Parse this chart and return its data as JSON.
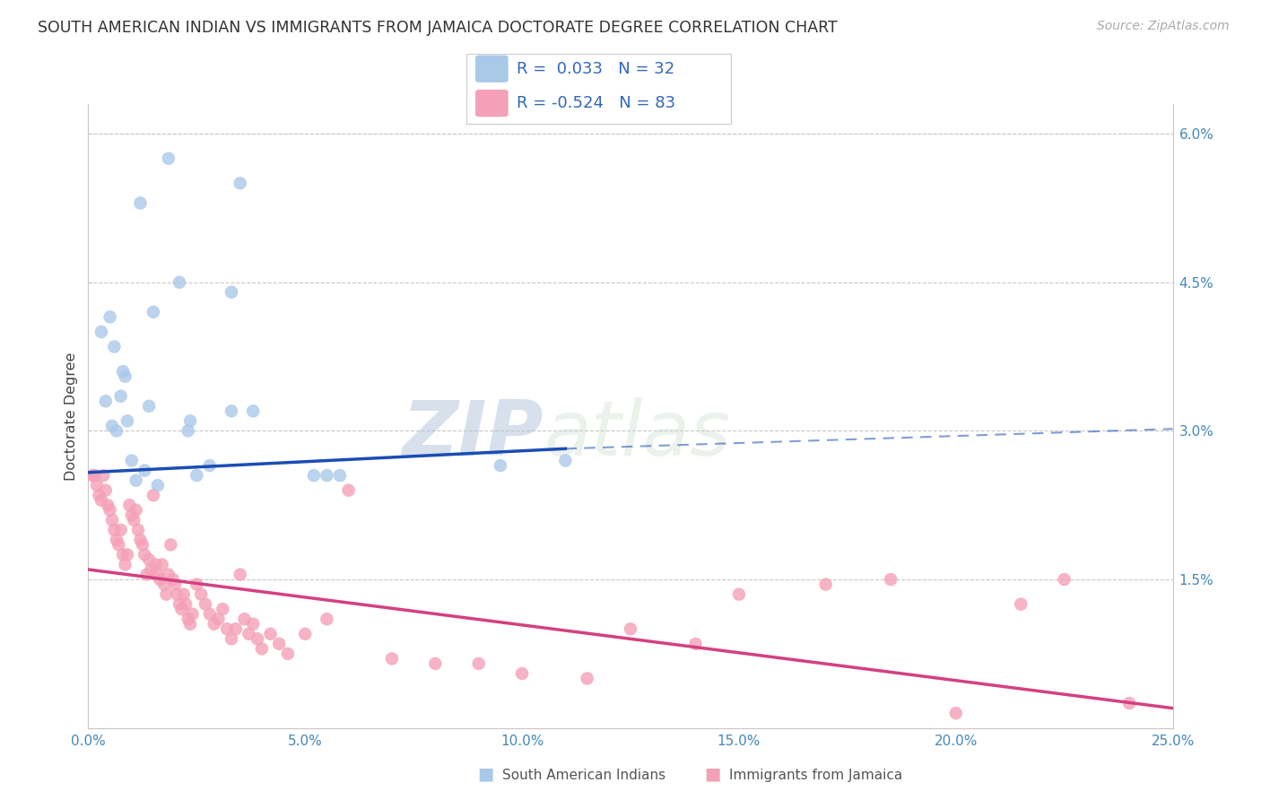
{
  "title": "SOUTH AMERICAN INDIAN VS IMMIGRANTS FROM JAMAICA DOCTORATE DEGREE CORRELATION CHART",
  "source": "Source: ZipAtlas.com",
  "xlabel_ticks": [
    "0.0%",
    "5.0%",
    "10.0%",
    "15.0%",
    "20.0%",
    "25.0%"
  ],
  "xlabel_tick_vals": [
    0.0,
    5.0,
    10.0,
    15.0,
    20.0,
    25.0
  ],
  "ylabel": "Doctorate Degree",
  "right_ytick_labels": [
    "6.0%",
    "4.5%",
    "3.0%",
    "1.5%"
  ],
  "right_ytick_vals": [
    6.0,
    4.5,
    3.0,
    1.5
  ],
  "xlim": [
    0.0,
    25.0
  ],
  "ylim": [
    0.0,
    6.3
  ],
  "legend_label1": "South American Indians",
  "legend_label2": "Immigrants from Jamaica",
  "R1": 0.033,
  "N1": 32,
  "R2": -0.524,
  "N2": 83,
  "blue_scatter_color": "#aac8e8",
  "pink_scatter_color": "#f4a0b8",
  "blue_line_color": "#1a4db5",
  "pink_line_color": "#d44080",
  "background_color": "#ffffff",
  "grid_color": "#c8c8c8",
  "blue_line_y0": 2.58,
  "blue_line_y_at_11": 2.82,
  "blue_line_y_at_25": 3.02,
  "blue_solid_end_x": 11.0,
  "pink_line_y0": 1.6,
  "pink_line_y_end": 0.2,
  "blue_x": [
    1.2,
    1.85,
    3.5,
    0.5,
    1.5,
    2.1,
    3.3,
    0.3,
    0.6,
    0.8,
    0.75,
    0.85,
    1.4,
    3.3,
    0.4,
    0.9,
    1.0,
    1.1,
    1.3,
    5.5,
    1.6,
    2.5,
    3.8,
    2.8,
    5.2,
    9.5,
    11.0,
    2.3,
    2.35,
    5.8,
    0.65,
    0.55
  ],
  "blue_y": [
    5.3,
    5.75,
    5.5,
    4.15,
    4.2,
    4.5,
    4.4,
    4.0,
    3.85,
    3.6,
    3.35,
    3.55,
    3.25,
    3.2,
    3.3,
    3.1,
    2.7,
    2.5,
    2.6,
    2.55,
    2.45,
    2.55,
    3.2,
    2.65,
    2.55,
    2.65,
    2.7,
    3.0,
    3.1,
    2.55,
    3.0,
    3.05
  ],
  "pink_x": [
    0.1,
    0.2,
    0.25,
    0.3,
    0.35,
    0.4,
    0.45,
    0.5,
    0.55,
    0.6,
    0.65,
    0.7,
    0.75,
    0.8,
    0.85,
    0.9,
    0.95,
    1.0,
    1.05,
    1.1,
    1.15,
    1.2,
    1.25,
    1.3,
    1.35,
    1.4,
    1.45,
    1.5,
    1.55,
    1.6,
    1.65,
    1.7,
    1.75,
    1.8,
    1.85,
    1.9,
    1.95,
    2.0,
    2.05,
    2.1,
    2.15,
    2.2,
    2.25,
    2.3,
    2.35,
    2.4,
    2.5,
    2.6,
    2.7,
    2.8,
    2.9,
    3.0,
    3.1,
    3.2,
    3.3,
    3.4,
    3.5,
    3.6,
    3.7,
    3.8,
    3.9,
    4.0,
    4.2,
    4.4,
    4.6,
    5.0,
    5.5,
    6.0,
    7.0,
    8.0,
    9.0,
    10.0,
    11.5,
    12.5,
    14.0,
    15.0,
    17.0,
    18.5,
    20.0,
    21.5,
    22.5,
    24.0,
    0.15
  ],
  "pink_y": [
    2.55,
    2.45,
    2.35,
    2.3,
    2.55,
    2.4,
    2.25,
    2.2,
    2.1,
    2.0,
    1.9,
    1.85,
    2.0,
    1.75,
    1.65,
    1.75,
    2.25,
    2.15,
    2.1,
    2.2,
    2.0,
    1.9,
    1.85,
    1.75,
    1.55,
    1.7,
    1.6,
    2.35,
    1.65,
    1.55,
    1.5,
    1.65,
    1.45,
    1.35,
    1.55,
    1.85,
    1.5,
    1.45,
    1.35,
    1.25,
    1.2,
    1.35,
    1.25,
    1.1,
    1.05,
    1.15,
    1.45,
    1.35,
    1.25,
    1.15,
    1.05,
    1.1,
    1.2,
    1.0,
    0.9,
    1.0,
    1.55,
    1.1,
    0.95,
    1.05,
    0.9,
    0.8,
    0.95,
    0.85,
    0.75,
    0.95,
    1.1,
    2.4,
    0.7,
    0.65,
    0.65,
    0.55,
    0.5,
    1.0,
    0.85,
    1.35,
    1.45,
    1.5,
    0.15,
    1.25,
    1.5,
    0.25,
    2.55
  ]
}
